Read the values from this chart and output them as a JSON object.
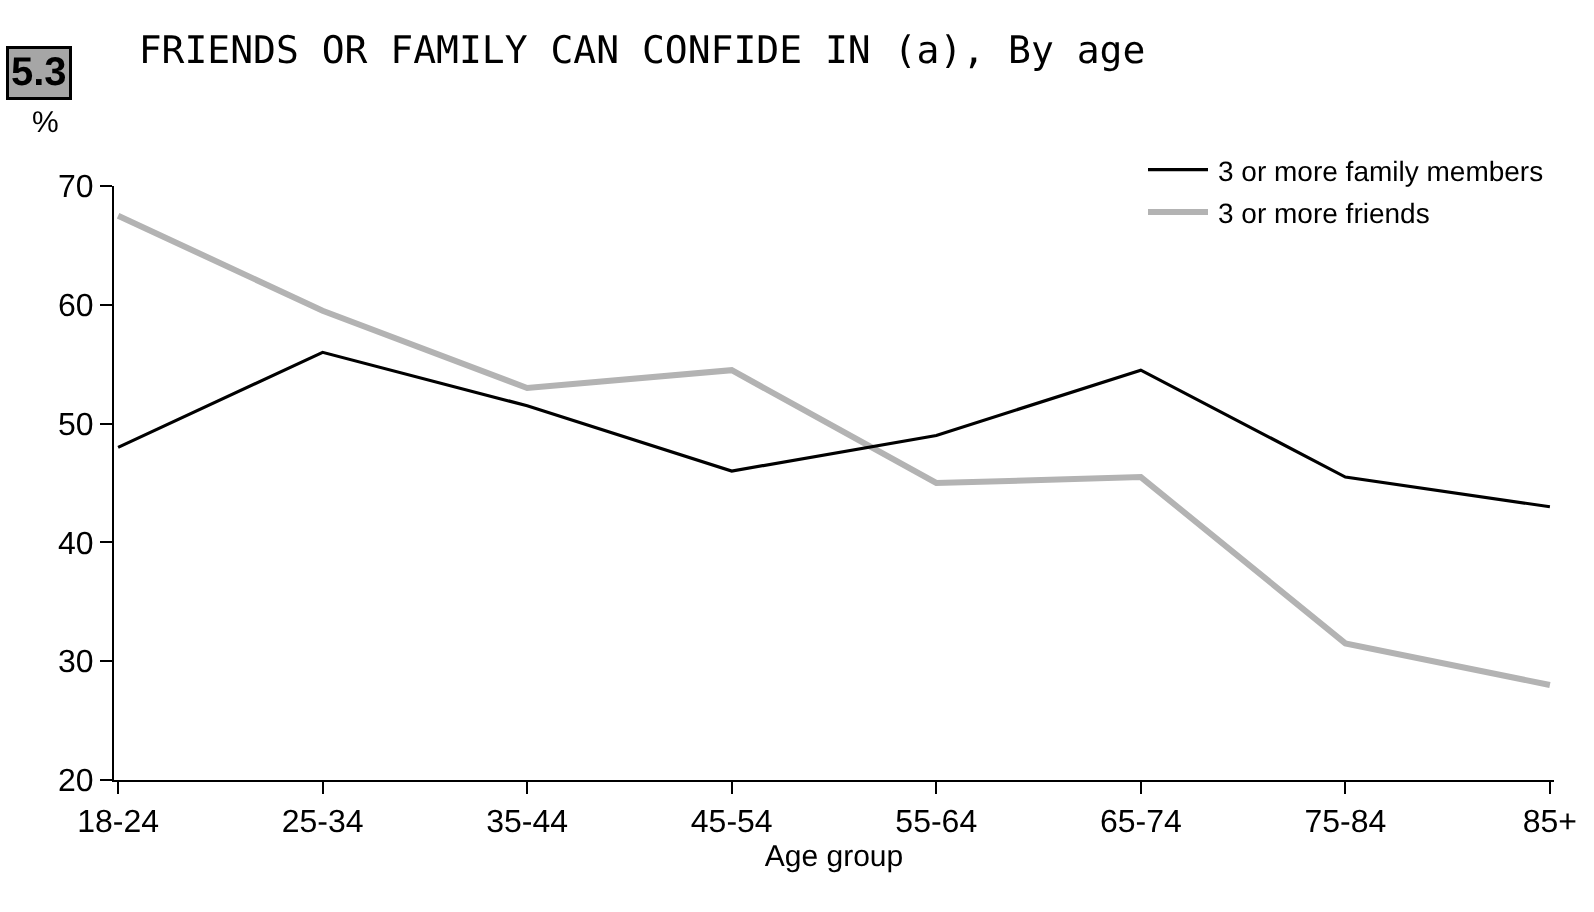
{
  "chart_data": {
    "type": "line",
    "title": "FRIENDS OR FAMILY CAN CONFIDE IN (a), By age",
    "annotations": [
      "5.3"
    ],
    "ylabel": "%",
    "xlabel": "Age group",
    "categories": [
      "18-24",
      "25-34",
      "35-44",
      "45-54",
      "55-64",
      "65-74",
      "75-84",
      "85+"
    ],
    "series": [
      {
        "name": "3 or more family members",
        "color": "#000000",
        "values": [
          48,
          56,
          51.5,
          46,
          49,
          54.5,
          45.5,
          43
        ]
      },
      {
        "name": "3 or more friends",
        "color": "#b3b3b3",
        "values": [
          67.5,
          59.5,
          53,
          54.5,
          45,
          45.5,
          31.5,
          28
        ]
      }
    ],
    "ylim": [
      20,
      70
    ],
    "yticks": [
      20,
      30,
      40,
      50,
      60,
      70
    ],
    "grid": false,
    "legend": "top right",
    "marker": "none",
    "line_style": "solid"
  }
}
